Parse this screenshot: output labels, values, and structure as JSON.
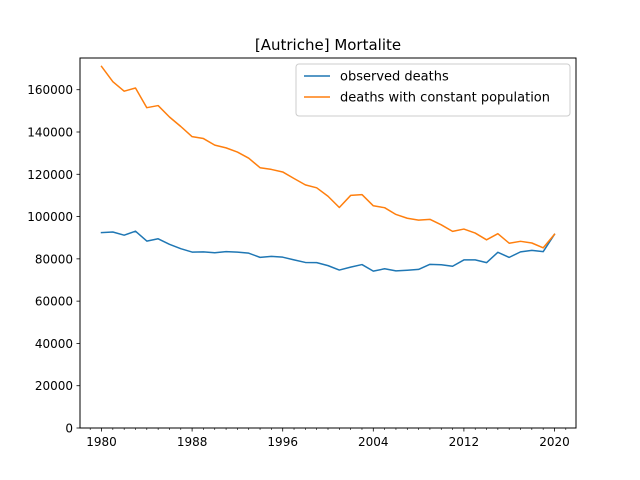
{
  "chart_data": {
    "type": "line",
    "title": "[Autriche] Mortalite",
    "xlabel": "",
    "ylabel": "",
    "xlim": [
      1978.1,
      2021.9
    ],
    "ylim": [
      0,
      175000
    ],
    "xticks": [
      1980,
      1988,
      1996,
      2004,
      2012,
      2020
    ],
    "yticks": [
      0,
      20000,
      40000,
      60000,
      80000,
      100000,
      120000,
      140000,
      160000
    ],
    "minor_xticks_every": 1,
    "grid": false,
    "legend_position": "top-right",
    "x": [
      1980,
      1981,
      1982,
      1983,
      1984,
      1985,
      1986,
      1987,
      1988,
      1989,
      1990,
      1991,
      1992,
      1993,
      1994,
      1995,
      1996,
      1997,
      1998,
      1999,
      2000,
      2001,
      2002,
      2003,
      2004,
      2005,
      2006,
      2007,
      2008,
      2009,
      2010,
      2011,
      2012,
      2013,
      2014,
      2015,
      2016,
      2017,
      2018,
      2019,
      2020
    ],
    "series": [
      {
        "name": "observed deaths",
        "color": "#1f77b4",
        "values": [
          92400,
          92700,
          91200,
          93100,
          88400,
          89500,
          86900,
          84800,
          83200,
          83300,
          82900,
          83400,
          83200,
          82700,
          80700,
          81200,
          80800,
          79500,
          78300,
          78200,
          76800,
          74700,
          76100,
          77300,
          74200,
          75300,
          74300,
          74600,
          75000,
          77400,
          77200,
          76500,
          79500,
          79500,
          78200,
          83100,
          80700,
          83300,
          84000,
          83400,
          91600
        ]
      },
      {
        "name": "deaths with constant population",
        "color": "#ff7f0e",
        "values": [
          171000,
          163800,
          159300,
          160800,
          151500,
          152500,
          147100,
          142600,
          137800,
          136900,
          133800,
          132500,
          130500,
          127600,
          123100,
          122300,
          121100,
          118000,
          115000,
          113600,
          109600,
          104300,
          110000,
          110400,
          105100,
          104200,
          101000,
          99200,
          98300,
          98700,
          96100,
          93000,
          94100,
          92200,
          89000,
          91900,
          87400,
          88300,
          87500,
          85200,
          91600
        ]
      }
    ]
  }
}
